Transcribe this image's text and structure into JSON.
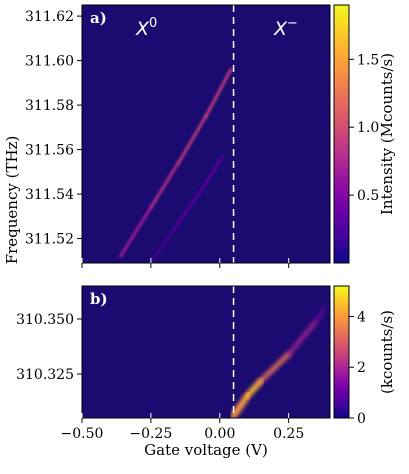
{
  "colors": {
    "background": "#1b0a6f",
    "colormap": [
      "#0d0887",
      "#41049d",
      "#6a00a8",
      "#8f0da4",
      "#b12a90",
      "#cc4778",
      "#e16462",
      "#f2844b",
      "#fca636",
      "#fcce25",
      "#f0f921"
    ]
  },
  "chart_data": [
    {
      "type": "heatmap",
      "panel_label": "a)",
      "state_labels": [
        {
          "base": "X",
          "sup": "0"
        },
        {
          "base": "X",
          "sup": "−"
        }
      ],
      "ylabel": "Frequency (THz)",
      "yticks": [
        "311.52",
        "311.54",
        "311.56",
        "311.58",
        "311.60",
        "311.62"
      ],
      "ylim": [
        311.509,
        311.625
      ],
      "xlim": [
        -0.5,
        0.4
      ],
      "x_axis_labels_shown": false,
      "dashed_line_x": 0.05,
      "colorbar": {
        "label": "Intensity (Mcounts/s)",
        "range": [
          0,
          1.9
        ],
        "ticks": [
          "0.5",
          "1.0",
          "1.5"
        ]
      },
      "series": [
        {
          "x": [
            -0.36,
            -0.25,
            -0.15,
            -0.05,
            0.04
          ],
          "y": [
            311.512,
            311.534,
            311.554,
            311.575,
            311.596
          ],
          "intensity": [
            0.6,
            0.75,
            0.85,
            0.9,
            0.9
          ]
        },
        {
          "x": [
            -0.24,
            -0.15,
            -0.05,
            0.01
          ],
          "y": [
            311.511,
            311.527,
            311.545,
            311.557
          ],
          "intensity": [
            0.25,
            0.3,
            0.35,
            0.35
          ]
        }
      ]
    },
    {
      "type": "heatmap",
      "panel_label": "b)",
      "xlabel": "Gate voltage (V)",
      "xticks": [
        "−0.50",
        "−0.25",
        "0.00",
        "0.25"
      ],
      "xlim": [
        -0.5,
        0.4
      ],
      "yticks": [
        "310.325",
        "310.350"
      ],
      "ylim": [
        310.305,
        310.365
      ],
      "dashed_line_x": 0.05,
      "colorbar": {
        "label": "(kcounts/s)",
        "range": [
          0,
          5.2
        ],
        "ticks": [
          "0",
          "2",
          "4"
        ]
      },
      "series": [
        {
          "x": [
            0.05,
            0.1,
            0.15,
            0.25,
            0.35,
            0.38
          ],
          "y": [
            310.306,
            310.315,
            310.322,
            310.334,
            310.349,
            310.355
          ],
          "intensity": [
            3.5,
            4.5,
            4.2,
            2.5,
            1.5,
            1.0
          ]
        }
      ]
    }
  ]
}
